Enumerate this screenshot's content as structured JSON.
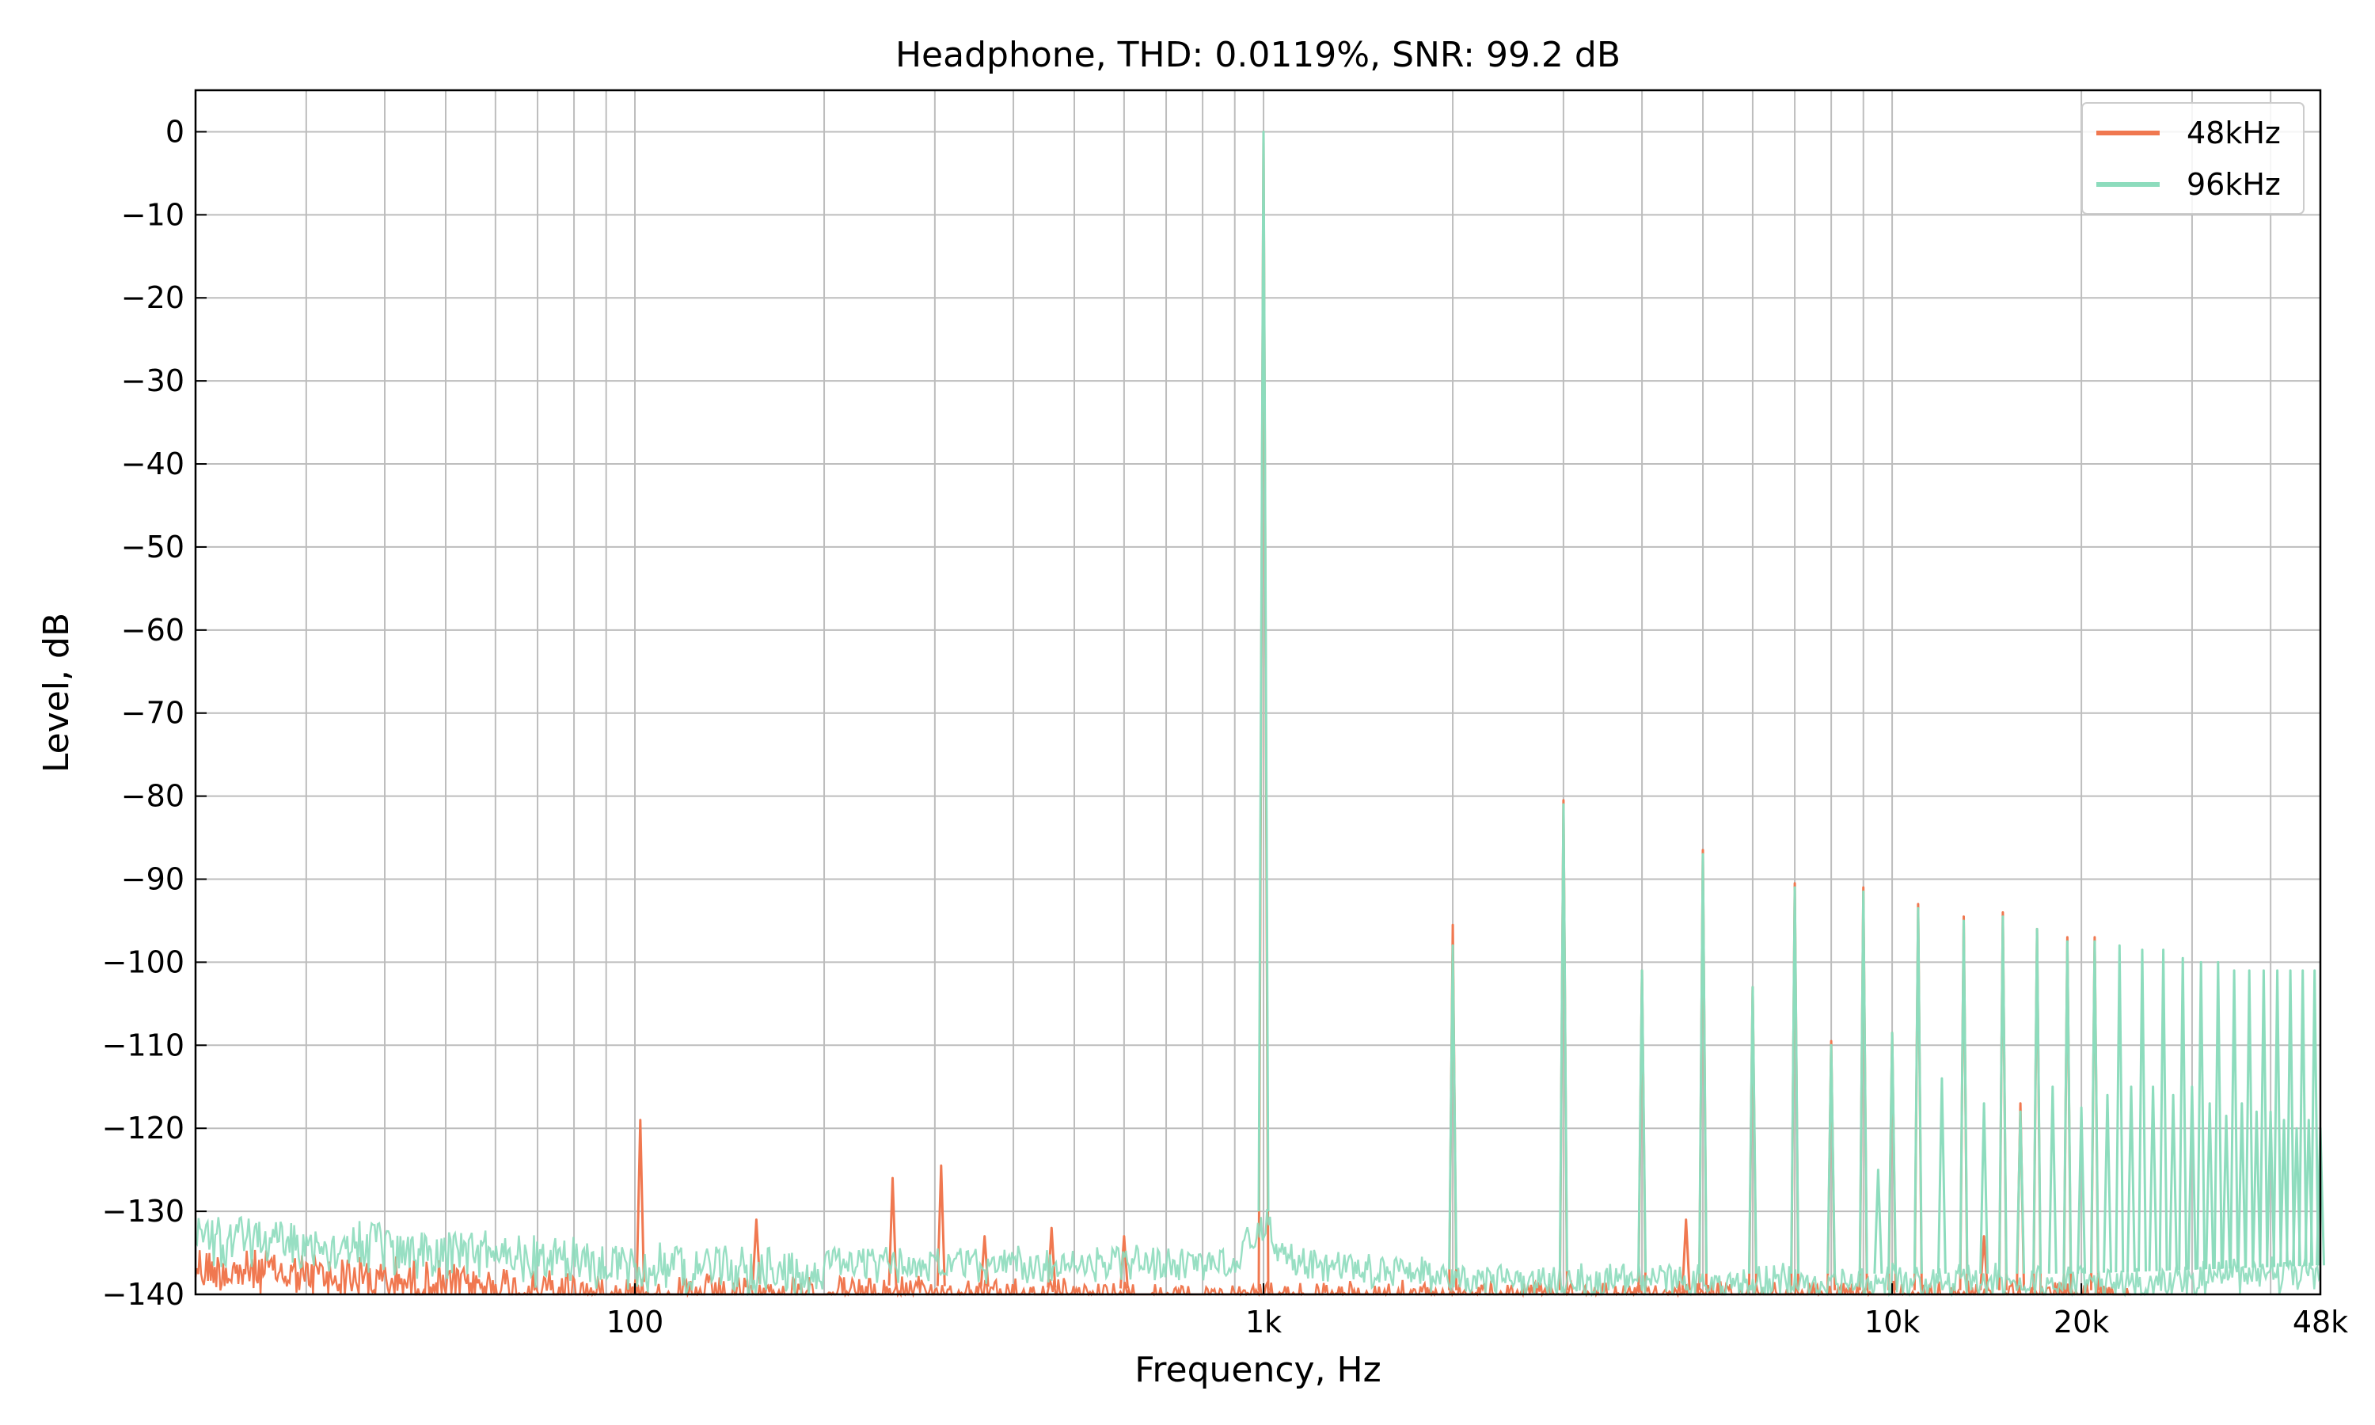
{
  "chart_data": {
    "type": "line",
    "title": "Headphone, THD: 0.0119%, SNR: 99.2 dB",
    "xlabel": "Frequency, Hz",
    "ylabel": "Level, dB",
    "xscale": "log",
    "xlim": [
      20,
      48000
    ],
    "ylim": [
      -140,
      5
    ],
    "grid": true,
    "legend_position": "top-right",
    "x_ticks": [
      {
        "value": 100,
        "label": "100"
      },
      {
        "value": 1000,
        "label": "1k"
      },
      {
        "value": 10000,
        "label": "10k"
      },
      {
        "value": 20000,
        "label": "20k"
      },
      {
        "value": 48000,
        "label": "48k"
      }
    ],
    "y_ticks": [
      {
        "value": 0,
        "label": "0"
      },
      {
        "value": -10,
        "label": "−10"
      },
      {
        "value": -20,
        "label": "−20"
      },
      {
        "value": -30,
        "label": "−30"
      },
      {
        "value": -40,
        "label": "−40"
      },
      {
        "value": -50,
        "label": "−50"
      },
      {
        "value": -60,
        "label": "−60"
      },
      {
        "value": -70,
        "label": "−70"
      },
      {
        "value": -80,
        "label": "−80"
      },
      {
        "value": -90,
        "label": "−90"
      },
      {
        "value": -100,
        "label": "−100"
      },
      {
        "value": -110,
        "label": "−110"
      },
      {
        "value": -120,
        "label": "−120"
      },
      {
        "value": -130,
        "label": "−130"
      },
      {
        "value": -140,
        "label": "−140"
      }
    ],
    "series": [
      {
        "name": "48kHz",
        "color": "#f07850",
        "noise_floor": [
          [
            20,
            -135
          ],
          [
            50,
            -137
          ],
          [
            100,
            -138.5
          ],
          [
            300,
            -139
          ],
          [
            1000,
            -139.5
          ],
          [
            5000,
            -139.5
          ],
          [
            24000,
            -139.5
          ]
        ],
        "spikes": [
          [
            102,
            -119
          ],
          [
            156,
            -131
          ],
          [
            257,
            -126
          ],
          [
            307,
            -124.5
          ],
          [
            360,
            -133
          ],
          [
            460,
            -132
          ],
          [
            600,
            -133
          ],
          [
            1000,
            0
          ],
          [
            2000,
            -95.5
          ],
          [
            3000,
            -80.5
          ],
          [
            4000,
            -101
          ],
          [
            4700,
            -131
          ],
          [
            5000,
            -86.5
          ],
          [
            6000,
            -103
          ],
          [
            7000,
            -90.5
          ],
          [
            8000,
            -109.5
          ],
          [
            9000,
            -91
          ],
          [
            10000,
            -108.5
          ],
          [
            11000,
            -93
          ],
          [
            13000,
            -94.5
          ],
          [
            14000,
            -133
          ],
          [
            15000,
            -94
          ],
          [
            16000,
            -117
          ],
          [
            17000,
            -96
          ],
          [
            19000,
            -97
          ],
          [
            21000,
            -97
          ]
        ]
      },
      {
        "name": "96kHz",
        "color": "#8ddcbd",
        "noise_floor": [
          [
            20,
            -131
          ],
          [
            50,
            -133
          ],
          [
            100,
            -134.5
          ],
          [
            300,
            -135.5
          ],
          [
            900,
            -135
          ],
          [
            1000,
            -130
          ],
          [
            1100,
            -135
          ],
          [
            2000,
            -137
          ],
          [
            5000,
            -137.5
          ],
          [
            20000,
            -137.5
          ],
          [
            48000,
            -136.5
          ]
        ],
        "spikes": [
          [
            1000,
            0
          ],
          [
            2000,
            -98
          ],
          [
            3000,
            -81
          ],
          [
            4000,
            -101
          ],
          [
            5000,
            -87
          ],
          [
            6000,
            -103
          ],
          [
            7000,
            -91
          ],
          [
            8000,
            -110
          ],
          [
            9000,
            -91.5
          ],
          [
            9500,
            -125
          ],
          [
            10000,
            -108.5
          ],
          [
            11000,
            -93.5
          ],
          [
            12000,
            -114
          ],
          [
            13000,
            -95
          ],
          [
            14000,
            -117
          ],
          [
            15000,
            -94.5
          ],
          [
            16000,
            -118
          ],
          [
            17000,
            -96
          ],
          [
            18000,
            -115
          ],
          [
            19000,
            -97.5
          ],
          [
            20000,
            -117.5
          ],
          [
            21000,
            -97.5
          ],
          [
            22000,
            -116
          ],
          [
            23000,
            -98
          ],
          [
            24000,
            -115
          ],
          [
            25000,
            -98.5
          ],
          [
            26000,
            -115
          ],
          [
            27000,
            -98.5
          ],
          [
            28000,
            -116
          ],
          [
            29000,
            -99.5
          ],
          [
            30000,
            -115
          ],
          [
            31000,
            -100
          ],
          [
            32000,
            -117
          ],
          [
            33000,
            -100
          ],
          [
            34000,
            -118.5
          ],
          [
            35000,
            -101
          ],
          [
            36000,
            -117
          ],
          [
            37000,
            -101
          ],
          [
            38000,
            -118
          ],
          [
            39000,
            -101
          ],
          [
            40000,
            -118
          ],
          [
            41000,
            -101
          ],
          [
            42000,
            -119
          ],
          [
            43000,
            -101
          ],
          [
            44000,
            -120
          ],
          [
            45000,
            -101
          ],
          [
            46000,
            -119
          ],
          [
            47000,
            -101
          ],
          [
            48000,
            -120
          ]
        ]
      }
    ]
  }
}
